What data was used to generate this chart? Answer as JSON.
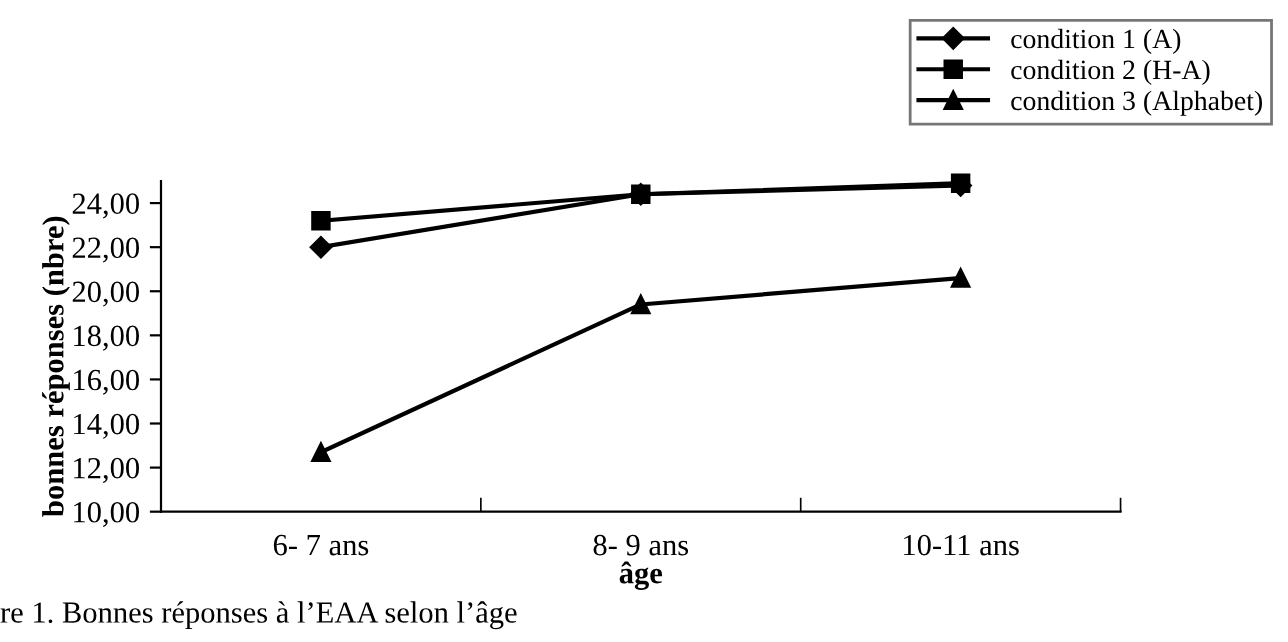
{
  "chart_data": {
    "type": "line",
    "xlabel": "âge",
    "ylabel": "bonnes réponses (nbre)",
    "categories": [
      "6- 7 ans",
      "8- 9 ans",
      "10-11 ans"
    ],
    "series": [
      {
        "name": "condition 1 (A)",
        "color": "#000000",
        "marker": "diamond",
        "values": [
          22.0,
          24.4,
          24.8
        ]
      },
      {
        "name": "condition 2 (H-A)",
        "color": "#000000",
        "marker": "square",
        "values": [
          23.2,
          24.4,
          24.9
        ]
      },
      {
        "name": "condition 3 (Alphabet)",
        "color": "#000000",
        "marker": "triangle",
        "values": [
          12.7,
          19.4,
          20.6
        ]
      }
    ],
    "ylim": [
      10,
      25
    ],
    "yticks": [
      {
        "value": 10,
        "label": "10,00"
      },
      {
        "value": 12,
        "label": "12,00"
      },
      {
        "value": 14,
        "label": "14,00"
      },
      {
        "value": 16,
        "label": "16,00"
      },
      {
        "value": 18,
        "label": "18,00"
      },
      {
        "value": 20,
        "label": "20,00"
      },
      {
        "value": 22,
        "label": "22,00"
      },
      {
        "value": 24,
        "label": "24,00"
      }
    ],
    "legend": "top right",
    "grid": false,
    "line_style": "solid",
    "annotations": [
      "re 1. Bonnes réponses à l’EAA selon l’âge"
    ]
  }
}
